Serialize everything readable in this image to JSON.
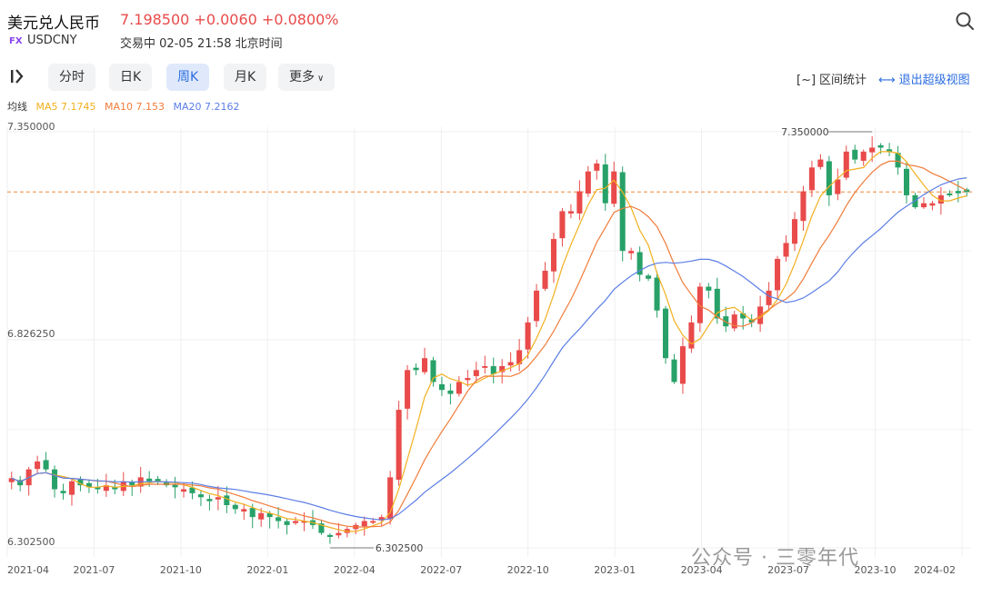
{
  "header": {
    "title": "美元兑人民币",
    "quote": "7.198500 +0.0060 +0.0800%",
    "badge": "FX",
    "symbol": "USDCNY",
    "status": "交易中 02-05 21:58 北京时间"
  },
  "toolbar": {
    "tabs": [
      "分时",
      "日K",
      "周K",
      "月K",
      "更多"
    ],
    "active_tab": "周K",
    "range_stat": "区间统计",
    "exit_view": "退出超级视图"
  },
  "ma_row": {
    "label": "均线",
    "ma5": "MA5 7.1745",
    "ma10": "MA10 7.153",
    "ma20": "MA20 7.2162"
  },
  "colors": {
    "up": "#e94a4a",
    "down": "#27a168",
    "ma5": "#f2b01e",
    "ma10": "#f07c3a",
    "ma20": "#5b7ee5",
    "current_line": "#f08a3c",
    "accent": "#2d6ee0"
  },
  "watermark": "公众号 · 三零年代",
  "chart_data": {
    "type": "candlestick",
    "period": "weekly",
    "ylim": [
      6.3025,
      7.35
    ],
    "y_ticks": [
      "7.350000",
      "6.826250",
      "6.302500"
    ],
    "x_ticks": [
      "2021-04",
      "2021-07",
      "2021-10",
      "2022-01",
      "2022-04",
      "2022-07",
      "2022-10",
      "2023-01",
      "2023-04",
      "2023-07",
      "2023-10",
      "2024-02"
    ],
    "current_price": 7.1985,
    "annotations": {
      "high": "7.350000",
      "low": "6.302500"
    },
    "grid": true,
    "anchors": [
      6.478,
      6.46,
      6.5,
      6.52,
      6.5,
      6.45,
      6.44,
      6.47,
      6.46,
      6.455,
      6.45,
      6.46,
      6.45,
      6.47,
      6.46,
      6.48,
      6.47,
      6.47,
      6.46,
      6.455,
      6.45,
      6.44,
      6.43,
      6.42,
      6.43,
      6.41,
      6.4,
      6.4,
      6.38,
      6.39,
      6.38,
      6.37,
      6.36,
      6.37,
      6.37,
      6.36,
      6.34,
      6.33,
      6.34,
      6.35,
      6.36,
      6.37,
      6.37,
      6.38,
      6.48,
      6.65,
      6.75,
      6.75,
      6.78,
      6.72,
      6.7,
      6.69,
      6.72,
      6.73,
      6.75,
      6.76,
      6.74,
      6.76,
      6.77,
      6.8,
      6.87,
      6.95,
      7.0,
      7.08,
      7.15,
      7.15,
      7.2,
      7.25,
      7.27,
      7.17,
      7.25,
      7.05,
      7.05,
      6.99,
      6.98,
      6.9,
      6.78,
      6.72,
      6.81,
      6.87,
      6.96,
      6.95,
      6.88,
      6.86,
      6.89,
      6.88,
      6.87,
      6.91,
      6.95,
      7.03,
      7.07,
      7.13,
      7.2,
      7.26,
      7.28,
      7.19,
      7.23,
      7.3,
      7.28,
      7.3,
      7.31,
      7.31,
      7.3,
      7.26,
      7.19,
      7.16,
      7.17,
      7.17,
      7.19,
      7.19,
      7.195,
      7.1985
    ]
  }
}
